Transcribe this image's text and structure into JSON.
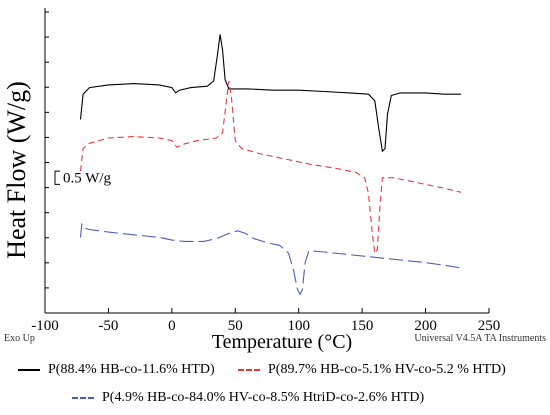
{
  "chart_data": {
    "type": "line",
    "title": "",
    "xlabel": "Temperature (°C)",
    "ylabel": "Heat Flow (W/g)",
    "xlim": [
      -100,
      250
    ],
    "x_ticks": [
      -100,
      -50,
      0,
      50,
      100,
      150,
      200,
      250
    ],
    "y_ticks_count": 13,
    "grid": false,
    "legend_position": "bottom",
    "scale_bar_label": "0.5 W/g",
    "scale_bar_value": 0.5,
    "corner_left_label": "Exo Up",
    "corner_right_label": "Universal V4.5A TA Instruments",
    "series": [
      {
        "name": "P(88.4% HB-co-11.6% HTD)",
        "color": "#000000",
        "dash": "solid",
        "points": [
          [
            -72,
            2.06
          ],
          [
            -70,
            2.25
          ],
          [
            -65,
            2.3
          ],
          [
            -50,
            2.32
          ],
          [
            -30,
            2.33
          ],
          [
            -10,
            2.32
          ],
          [
            0,
            2.3
          ],
          [
            3,
            2.26
          ],
          [
            6,
            2.28
          ],
          [
            15,
            2.3
          ],
          [
            28,
            2.31
          ],
          [
            33,
            2.35
          ],
          [
            36,
            2.55
          ],
          [
            38,
            2.7
          ],
          [
            40,
            2.58
          ],
          [
            42,
            2.36
          ],
          [
            45,
            2.29
          ],
          [
            60,
            2.29
          ],
          [
            80,
            2.28
          ],
          [
            100,
            2.28
          ],
          [
            120,
            2.27
          ],
          [
            140,
            2.26
          ],
          [
            155,
            2.25
          ],
          [
            160,
            2.2
          ],
          [
            163,
            2.0
          ],
          [
            166,
            1.82
          ],
          [
            168,
            1.84
          ],
          [
            170,
            2.1
          ],
          [
            173,
            2.24
          ],
          [
            180,
            2.26
          ],
          [
            200,
            2.26
          ],
          [
            215,
            2.25
          ],
          [
            228,
            2.25
          ]
        ]
      },
      {
        "name": "P(89.7% HB-co-5.1% HV-co-5.2 % HTD)",
        "color": "#e8383d",
        "dash": "dash",
        "points": [
          [
            -72,
            1.67
          ],
          [
            -70,
            1.84
          ],
          [
            -65,
            1.88
          ],
          [
            -50,
            1.92
          ],
          [
            -30,
            1.93
          ],
          [
            -10,
            1.92
          ],
          [
            0,
            1.9
          ],
          [
            4,
            1.85
          ],
          [
            8,
            1.87
          ],
          [
            20,
            1.9
          ],
          [
            35,
            1.92
          ],
          [
            40,
            1.96
          ],
          [
            43,
            2.2
          ],
          [
            45,
            2.35
          ],
          [
            47,
            2.22
          ],
          [
            50,
            1.9
          ],
          [
            55,
            1.84
          ],
          [
            70,
            1.8
          ],
          [
            90,
            1.76
          ],
          [
            110,
            1.72
          ],
          [
            130,
            1.69
          ],
          [
            145,
            1.66
          ],
          [
            152,
            1.62
          ],
          [
            155,
            1.5
          ],
          [
            158,
            1.2
          ],
          [
            160,
            1.05
          ],
          [
            162,
            1.08
          ],
          [
            164,
            1.4
          ],
          [
            166,
            1.62
          ],
          [
            175,
            1.62
          ],
          [
            185,
            1.6
          ],
          [
            200,
            1.57
          ],
          [
            215,
            1.54
          ],
          [
            228,
            1.51
          ]
        ]
      },
      {
        "name": "P(4.9% HB-co-84.0% HV-co-8.5% HtriD-co-2.6% HTD)",
        "color": "#4a5cc4",
        "dash": "longdash",
        "points": [
          [
            -72,
            1.17
          ],
          [
            -71,
            1.27
          ],
          [
            -69,
            1.24
          ],
          [
            -65,
            1.23
          ],
          [
            -50,
            1.21
          ],
          [
            -30,
            1.19
          ],
          [
            -10,
            1.17
          ],
          [
            0,
            1.15
          ],
          [
            10,
            1.14
          ],
          [
            25,
            1.14
          ],
          [
            35,
            1.16
          ],
          [
            45,
            1.2
          ],
          [
            52,
            1.22
          ],
          [
            58,
            1.2
          ],
          [
            65,
            1.16
          ],
          [
            75,
            1.13
          ],
          [
            85,
            1.11
          ],
          [
            92,
            1.05
          ],
          [
            96,
            0.92
          ],
          [
            99,
            0.78
          ],
          [
            101,
            0.74
          ],
          [
            103,
            0.78
          ],
          [
            105,
            0.98
          ],
          [
            108,
            1.07
          ],
          [
            120,
            1.06
          ],
          [
            140,
            1.04
          ],
          [
            160,
            1.02
          ],
          [
            180,
            1.0
          ],
          [
            200,
            0.98
          ],
          [
            215,
            0.96
          ],
          [
            228,
            0.94
          ]
        ]
      }
    ]
  }
}
